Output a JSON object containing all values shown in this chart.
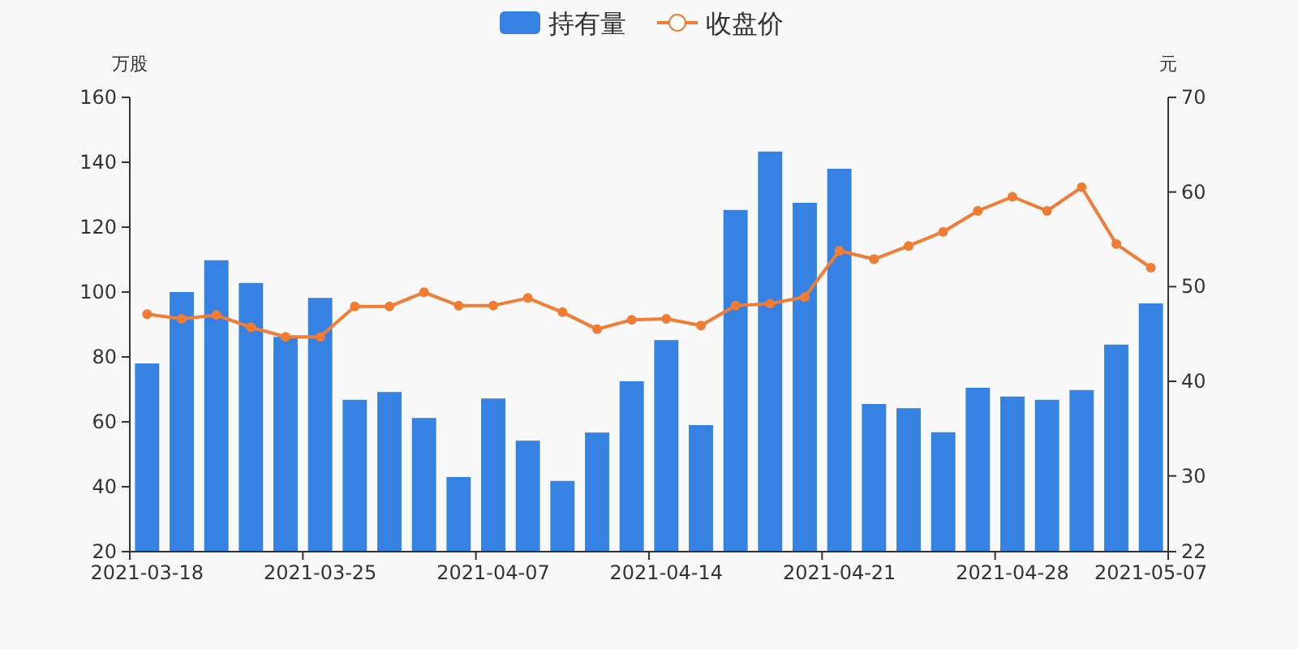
{
  "chart_data": {
    "type": "bar",
    "ylabel": "万股",
    "y2label": "元",
    "categories": [
      "2021-03-18",
      null,
      null,
      null,
      null,
      "2021-03-25",
      null,
      null,
      null,
      null,
      "2021-04-07",
      null,
      null,
      null,
      null,
      "2021-04-14",
      null,
      null,
      null,
      null,
      "2021-04-21",
      null,
      null,
      null,
      null,
      "2021-04-28",
      null,
      null,
      null,
      "2021-05-07"
    ],
    "series": [
      {
        "name": "持有量",
        "color": "#3582e2",
        "values": [
          78,
          100,
          109.8,
          102.8,
          86.2,
          98.2,
          66.8,
          69.2,
          61.2,
          43,
          67.2,
          54.2,
          41.8,
          56.7,
          72.5,
          85.2,
          59,
          125.3,
          143.3,
          127.5,
          138,
          65.5,
          64.2,
          56.8,
          70.5,
          67.8,
          66.8,
          69.8,
          83.8,
          96.5
        ]
      },
      {
        "name": "收盘价",
        "type": "line",
        "axis": "y2",
        "color": "#f07d33",
        "marker": "circle",
        "values": [
          47.1,
          46.6,
          47.0,
          45.7,
          44.7,
          44.7,
          47.9,
          47.9,
          49.4,
          48.0,
          48.0,
          48.8,
          47.3,
          45.5,
          46.5,
          46.6,
          45.9,
          48.0,
          48.2,
          48.9,
          53.8,
          52.9,
          54.3,
          55.8,
          58.0,
          59.5,
          58.0,
          60.5,
          54.5,
          52.0
        ]
      }
    ],
    "ylim": [
      20,
      160
    ],
    "yticks": [
      20,
      40,
      60,
      80,
      100,
      120,
      140,
      160
    ],
    "y2lim": [
      22,
      70
    ],
    "y2ticks": [
      22,
      30,
      40,
      50,
      60,
      70
    ],
    "legend": "top",
    "grid": false
  }
}
